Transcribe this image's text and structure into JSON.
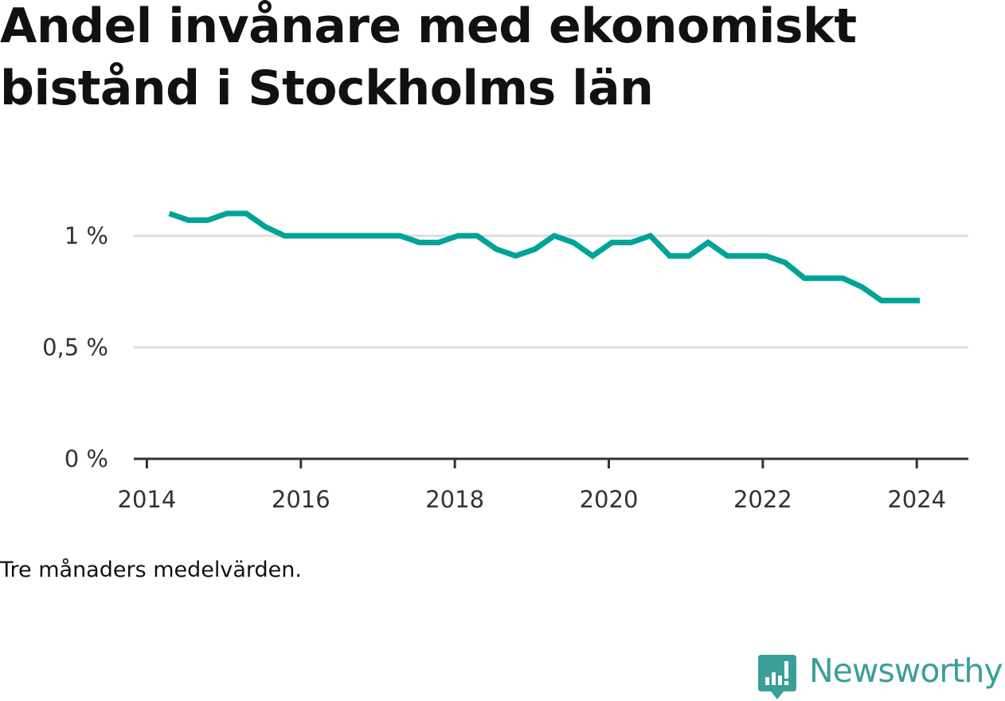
{
  "title": "Andel invånare med ekonomiskt bistånd i Stockholms län",
  "note": "Tre månaders medelvärden.",
  "brand": {
    "name": "Newsworthy",
    "icon": "newsworthy-bar-chart-icon",
    "color": "#3a9f98"
  },
  "colors": {
    "line": "#00a398",
    "grid": "#dddddd",
    "axis": "#333333"
  },
  "chart_data": {
    "type": "line",
    "title": "Andel invånare med ekonomiskt bistånd i Stockholms län",
    "xlabel": "",
    "ylabel": "",
    "xlim": [
      2013.83,
      2024.67
    ],
    "ylim": [
      0,
      1.0
    ],
    "y_ticks": [
      {
        "value": 0,
        "label": "0 %"
      },
      {
        "value": 0.5,
        "label": "0,5 %"
      },
      {
        "value": 1.0,
        "label": "1 %"
      }
    ],
    "x_ticks": [
      {
        "value": 2014,
        "label": "2014"
      },
      {
        "value": 2016,
        "label": "2016"
      },
      {
        "value": 2018,
        "label": "2018"
      },
      {
        "value": 2020,
        "label": "2020"
      },
      {
        "value": 2022,
        "label": "2022"
      },
      {
        "value": 2024,
        "label": "2024"
      }
    ],
    "grid": true,
    "legend": "none",
    "series": [
      {
        "x": [
          2014.29,
          2014.54,
          2014.79,
          2015.04,
          2015.29,
          2015.54,
          2015.79,
          2016.04,
          2016.29,
          2016.54,
          2016.79,
          2017.04,
          2017.29,
          2017.54,
          2017.79,
          2018.04,
          2018.29,
          2018.54,
          2018.79,
          2019.04,
          2019.29,
          2019.54,
          2019.79,
          2020.04,
          2020.29,
          2020.54,
          2020.79,
          2021.04,
          2021.29,
          2021.54,
          2021.79,
          2022.04,
          2022.29,
          2022.54,
          2022.79,
          2023.04,
          2023.29,
          2023.54,
          2023.79,
          2024.04
        ],
        "values": [
          1.1,
          1.07,
          1.07,
          1.1,
          1.1,
          1.04,
          1.0,
          1.0,
          1.0,
          1.0,
          1.0,
          1.0,
          1.0,
          0.97,
          0.97,
          1.0,
          1.0,
          0.94,
          0.91,
          0.94,
          1.0,
          0.97,
          0.91,
          0.97,
          0.97,
          1.0,
          0.91,
          0.91,
          0.97,
          0.91,
          0.91,
          0.91,
          0.88,
          0.81,
          0.81,
          0.81,
          0.77,
          0.71,
          0.71,
          0.71
        ]
      }
    ]
  }
}
